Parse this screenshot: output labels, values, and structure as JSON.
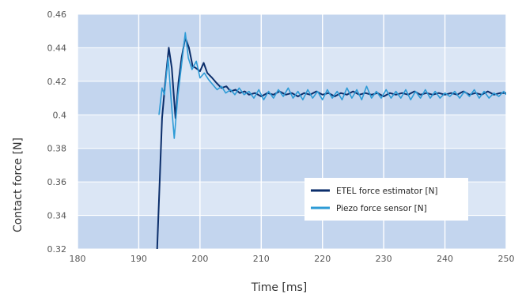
{
  "chart_data": {
    "type": "line",
    "xlabel": "Time [ms]",
    "ylabel": "Contact force [N]",
    "xlim": [
      180,
      250
    ],
    "ylim": [
      0.32,
      0.46
    ],
    "x_ticks": [
      "180",
      "190",
      "200",
      "210",
      "220",
      "230",
      "240",
      "250"
    ],
    "y_ticks": [
      "0.32",
      "0.34",
      "0.36",
      "0.38",
      "0.4",
      "0.42",
      "0.44",
      "0.46"
    ],
    "grid": true,
    "legend_position": "lower-right",
    "series": [
      {
        "name": "ETEL force estimator [N]",
        "color": "#0b2e6b",
        "x": [
          193.0,
          193.8,
          194.3,
          194.9,
          195.4,
          196.0,
          196.5,
          197.0,
          197.6,
          198.2,
          198.8,
          199.3,
          200.0,
          200.6,
          201.2,
          202.0,
          202.7,
          203.5,
          204.3,
          205.0,
          205.8,
          206.5,
          207.3,
          208.0,
          209.0,
          210.0,
          211.0,
          212.0,
          213.0,
          214.0,
          215.0,
          216.0,
          217.0,
          218.0,
          219.0,
          220.0,
          221.0,
          222.0,
          223.0,
          224.0,
          225.0,
          226.0,
          227.0,
          228.0,
          229.0,
          230.0,
          231.0,
          232.0,
          233.0,
          234.0,
          235.0,
          236.0,
          237.0,
          238.0,
          239.0,
          240.0,
          241.0,
          242.0,
          243.0,
          244.0,
          245.0,
          246.0,
          247.0,
          248.0,
          249.0,
          250.0
        ],
        "values": [
          0.32,
          0.398,
          0.418,
          0.44,
          0.428,
          0.398,
          0.42,
          0.434,
          0.446,
          0.44,
          0.429,
          0.428,
          0.426,
          0.431,
          0.425,
          0.422,
          0.419,
          0.416,
          0.417,
          0.414,
          0.415,
          0.413,
          0.414,
          0.412,
          0.413,
          0.411,
          0.413,
          0.412,
          0.414,
          0.412,
          0.413,
          0.411,
          0.413,
          0.412,
          0.414,
          0.412,
          0.413,
          0.411,
          0.413,
          0.412,
          0.414,
          0.412,
          0.413,
          0.412,
          0.413,
          0.411,
          0.413,
          0.412,
          0.413,
          0.412,
          0.414,
          0.412,
          0.413,
          0.412,
          0.413,
          0.412,
          0.413,
          0.412,
          0.414,
          0.412,
          0.413,
          0.412,
          0.414,
          0.412,
          0.413,
          0.413
        ]
      },
      {
        "name": "Piezo force sensor [N]",
        "color": "#2e9bd6",
        "x": [
          193.3,
          193.8,
          194.2,
          194.8,
          195.3,
          195.8,
          196.4,
          197.0,
          197.6,
          198.1,
          198.7,
          199.4,
          200.0,
          200.7,
          201.4,
          202.1,
          202.8,
          203.5,
          204.2,
          205.0,
          205.7,
          206.4,
          207.2,
          208.0,
          208.8,
          209.6,
          210.4,
          211.2,
          212.0,
          212.8,
          213.6,
          214.4,
          215.2,
          216.0,
          216.8,
          217.6,
          218.4,
          219.2,
          220.0,
          220.8,
          221.6,
          222.4,
          223.2,
          224.0,
          224.8,
          225.6,
          226.4,
          227.2,
          228.0,
          228.8,
          229.6,
          230.4,
          231.2,
          232.0,
          232.8,
          233.6,
          234.4,
          235.2,
          236.0,
          236.8,
          237.6,
          238.4,
          239.2,
          240.0,
          240.8,
          241.6,
          242.4,
          243.2,
          244.0,
          244.8,
          245.6,
          246.4,
          247.2,
          248.0,
          248.8,
          249.6,
          250.0
        ],
        "values": [
          0.4,
          0.416,
          0.412,
          0.434,
          0.408,
          0.386,
          0.412,
          0.43,
          0.449,
          0.434,
          0.427,
          0.432,
          0.422,
          0.425,
          0.421,
          0.418,
          0.415,
          0.417,
          0.413,
          0.415,
          0.412,
          0.416,
          0.412,
          0.414,
          0.41,
          0.415,
          0.409,
          0.414,
          0.41,
          0.415,
          0.411,
          0.416,
          0.41,
          0.414,
          0.409,
          0.415,
          0.41,
          0.414,
          0.409,
          0.415,
          0.41,
          0.414,
          0.409,
          0.416,
          0.41,
          0.415,
          0.409,
          0.417,
          0.41,
          0.414,
          0.41,
          0.415,
          0.41,
          0.414,
          0.41,
          0.415,
          0.409,
          0.414,
          0.41,
          0.415,
          0.41,
          0.414,
          0.41,
          0.413,
          0.411,
          0.414,
          0.41,
          0.414,
          0.411,
          0.415,
          0.41,
          0.414,
          0.41,
          0.413,
          0.411,
          0.414,
          0.412
        ]
      }
    ]
  },
  "colors": {
    "band_dark": "#c3d5ee",
    "band_light": "#dbe6f5",
    "grid": "#ffffff"
  }
}
